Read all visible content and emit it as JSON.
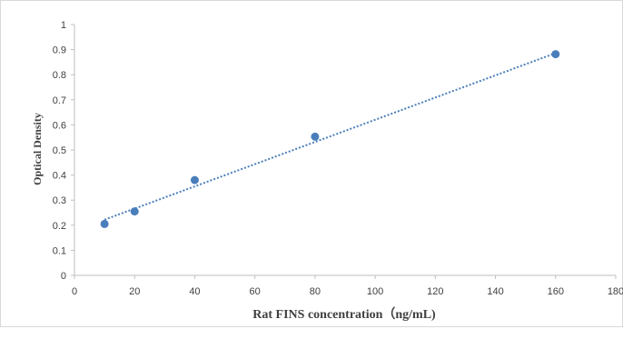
{
  "chart_data": {
    "type": "scatter",
    "title": "",
    "xlabel": "Rat FINS concentration（ng/mL)",
    "ylabel": "Optical Density",
    "xlim": [
      0,
      180
    ],
    "ylim": [
      0,
      1
    ],
    "x_ticks": [
      0,
      20,
      40,
      60,
      80,
      100,
      120,
      140,
      160,
      180
    ],
    "y_ticks": [
      0,
      0.1,
      0.2,
      0.3,
      0.4,
      0.5,
      0.6,
      0.7,
      0.8,
      0.9,
      1
    ],
    "x_tick_labels": [
      "0",
      "20",
      "40",
      "60",
      "80",
      "100",
      "120",
      "140",
      "160",
      "180"
    ],
    "y_tick_labels": [
      "0",
      "0.1",
      "0.2",
      "0.3",
      "0.4",
      "0.5",
      "0.6",
      "0.7",
      "0.8",
      "0.9",
      "1"
    ],
    "grid": false,
    "legend": "none",
    "series": [
      {
        "x": [
          10,
          20,
          40,
          80,
          160
        ],
        "y": [
          0.205,
          0.255,
          0.38,
          0.553,
          0.882
        ],
        "marker_color": "#4a7ebb"
      }
    ],
    "trendline": {
      "type": "linear",
      "x": [
        10,
        160
      ],
      "y": [
        0.222,
        0.886
      ],
      "style": "dotted",
      "color": "#4a7ebb"
    }
  }
}
